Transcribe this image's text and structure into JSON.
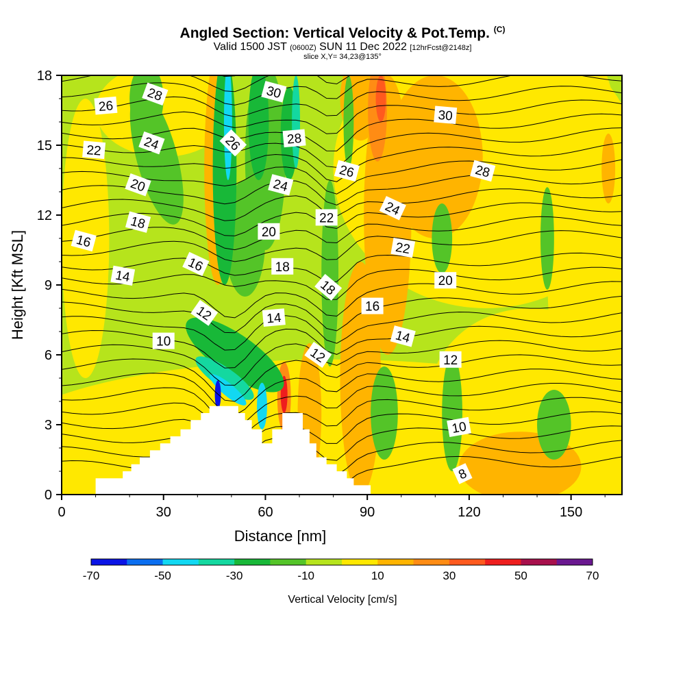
{
  "header": {
    "title": "Angled Section: Vertical Velocity & Pot.Temp.",
    "title_tag": "(C)",
    "valid_a": "Valid 1500 JST",
    "valid_z": "(0600Z)",
    "valid_b": "SUN 11 Dec 2022",
    "forecast": "[12hrFcst@2148z]",
    "slice": "slice X,Y= 34,23@135°"
  },
  "chart_data": {
    "type": "heatmap",
    "title": "Angled Section: Vertical Velocity & Pot.Temp.",
    "xlabel": "Distance [nm]",
    "ylabel": "Height [Kft MSL]",
    "xlim": [
      0,
      165
    ],
    "ylim": [
      0,
      18
    ],
    "x_ticks": [
      0,
      30,
      60,
      90,
      120,
      150
    ],
    "y_ticks": [
      0,
      3,
      6,
      9,
      12,
      15,
      18
    ],
    "contour_field": "Potential temperature (C)",
    "contour_labels": [
      {
        "text": "26",
        "x": 13,
        "y": 16.7,
        "angle": -5
      },
      {
        "text": "28",
        "x": 27.5,
        "y": 17.2,
        "angle": 20
      },
      {
        "text": "22",
        "x": 9.5,
        "y": 14.8,
        "angle": 5
      },
      {
        "text": "24",
        "x": 26.5,
        "y": 15.1,
        "angle": 20
      },
      {
        "text": "20",
        "x": 22.5,
        "y": 13.3,
        "angle": 20
      },
      {
        "text": "18",
        "x": 22.5,
        "y": 11.7,
        "angle": 15
      },
      {
        "text": "16",
        "x": 6.5,
        "y": 10.9,
        "angle": 15
      },
      {
        "text": "14",
        "x": 18,
        "y": 9.4,
        "angle": 10
      },
      {
        "text": "16",
        "x": 39.5,
        "y": 9.9,
        "angle": 25
      },
      {
        "text": "12",
        "x": 42,
        "y": 7.8,
        "angle": 35
      },
      {
        "text": "10",
        "x": 30,
        "y": 6.6,
        "angle": 0
      },
      {
        "text": "30",
        "x": 62.5,
        "y": 17.3,
        "angle": 15
      },
      {
        "text": "26",
        "x": 50.5,
        "y": 15.1,
        "angle": 45
      },
      {
        "text": "28",
        "x": 68.5,
        "y": 15.3,
        "angle": -5
      },
      {
        "text": "24",
        "x": 64.5,
        "y": 13.3,
        "angle": 15
      },
      {
        "text": "20",
        "x": 61,
        "y": 11.3,
        "angle": 0
      },
      {
        "text": "18",
        "x": 65,
        "y": 9.8,
        "angle": 0
      },
      {
        "text": "14",
        "x": 62.5,
        "y": 7.6,
        "angle": -5
      },
      {
        "text": "12",
        "x": 75.5,
        "y": 6.0,
        "angle": 35
      },
      {
        "text": "22",
        "x": 78,
        "y": 11.9,
        "angle": 0
      },
      {
        "text": "26",
        "x": 84,
        "y": 13.9,
        "angle": 15
      },
      {
        "text": "18",
        "x": 78.5,
        "y": 8.9,
        "angle": 40
      },
      {
        "text": "16",
        "x": 91.5,
        "y": 8.1,
        "angle": 0
      },
      {
        "text": "24",
        "x": 97.5,
        "y": 12.3,
        "angle": 25
      },
      {
        "text": "22",
        "x": 100.5,
        "y": 10.6,
        "angle": 10
      },
      {
        "text": "14",
        "x": 100.5,
        "y": 6.8,
        "angle": 15
      },
      {
        "text": "30",
        "x": 113,
        "y": 16.3,
        "angle": 5
      },
      {
        "text": "28",
        "x": 124,
        "y": 13.9,
        "angle": 15
      },
      {
        "text": "20",
        "x": 113,
        "y": 9.2,
        "angle": 0
      },
      {
        "text": "12",
        "x": 114.5,
        "y": 5.8,
        "angle": 0
      },
      {
        "text": "10",
        "x": 117,
        "y": 2.9,
        "angle": -10
      },
      {
        "text": "8",
        "x": 118,
        "y": 0.9,
        "angle": -25
      }
    ],
    "colorbar": {
      "title": "Vertical Velocity [cm/s]",
      "min": -70,
      "max": 70,
      "step": 10,
      "labels": [
        "-70",
        "-50",
        "-30",
        "-10",
        "10",
        "30",
        "50",
        "70"
      ],
      "colors": [
        "#0a14e6",
        "#0a6ef0",
        "#12d8f2",
        "#14d8a0",
        "#18b838",
        "#54c428",
        "#b6e41c",
        "#ffe800",
        "#ffb400",
        "#ff8c14",
        "#ff5a1e",
        "#ee1e1e",
        "#a8104c",
        "#6a1890"
      ]
    },
    "terrain": "white terrain cross-section with two peaks near 50 nm and 66 nm"
  }
}
